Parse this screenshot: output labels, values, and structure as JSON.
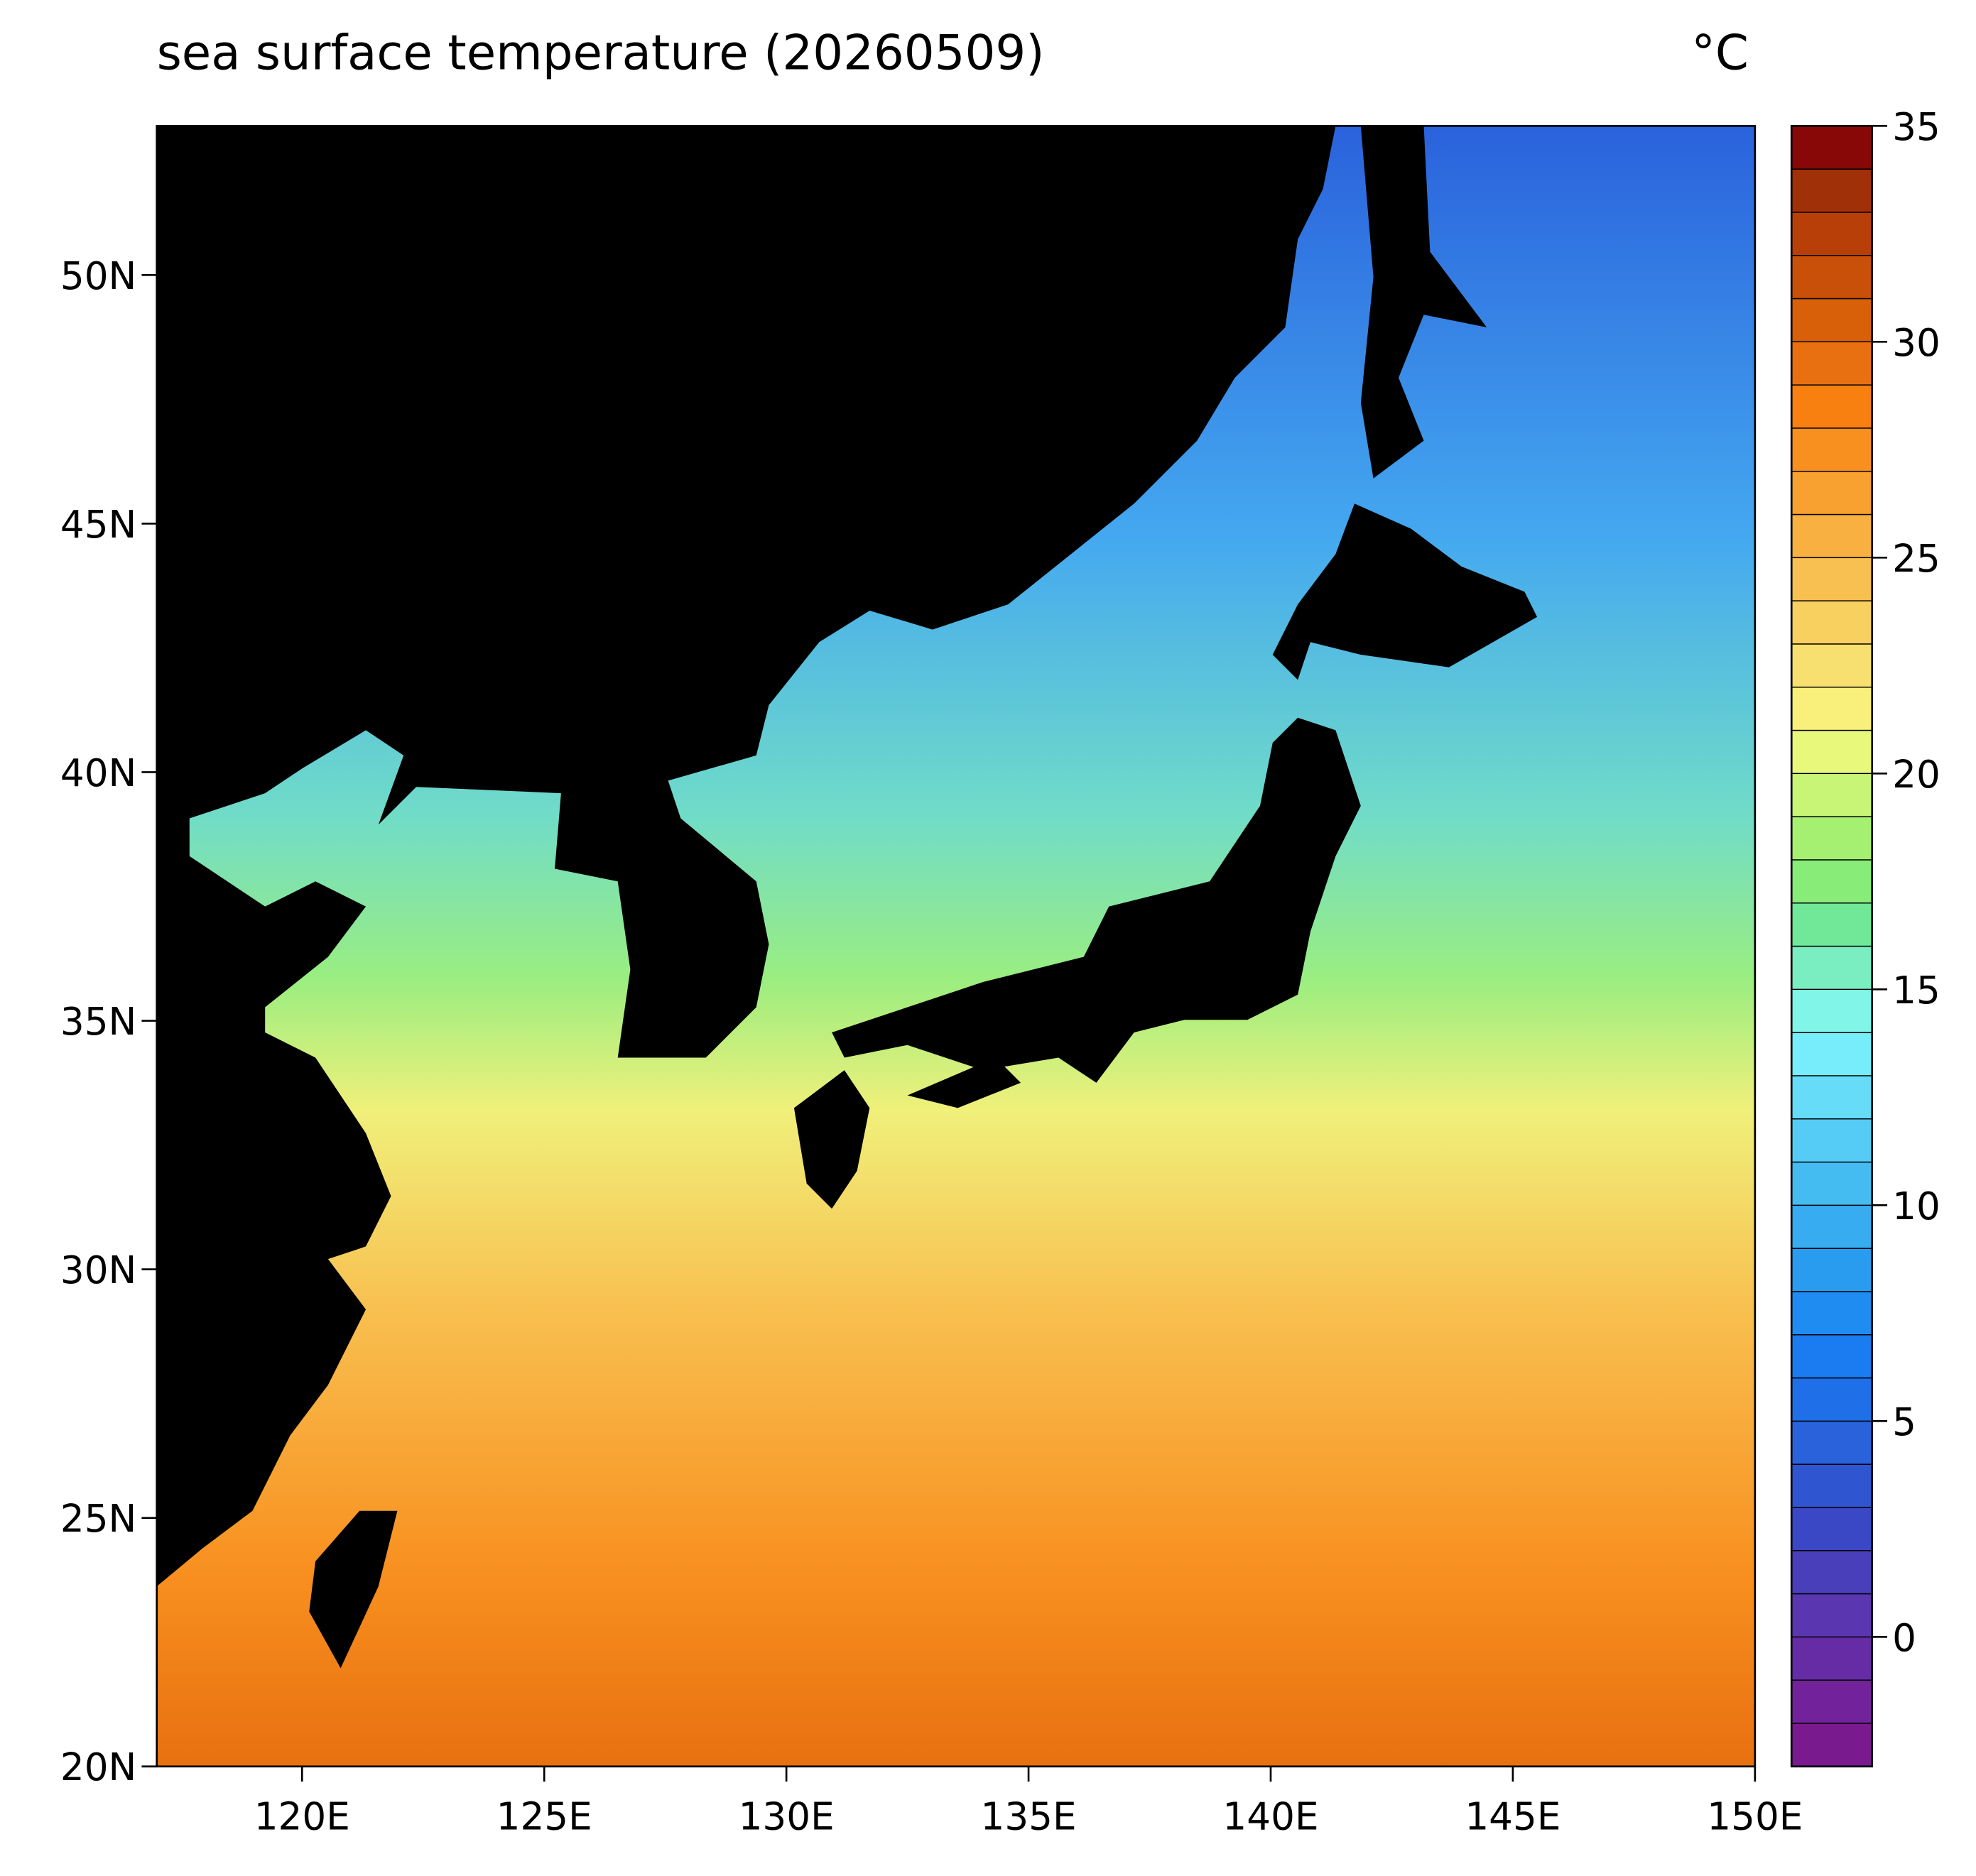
{
  "chart_data": {
    "type": "heatmap",
    "title": "sea surface temperature (20260509)",
    "unit": "°C",
    "xlim": [
      117,
      150
    ],
    "ylim": [
      20,
      53
    ],
    "xticks": [
      {
        "value": 120,
        "label": "120E"
      },
      {
        "value": 125,
        "label": "125E"
      },
      {
        "value": 130,
        "label": "130E"
      },
      {
        "value": 135,
        "label": "135E"
      },
      {
        "value": 140,
        "label": "140E"
      },
      {
        "value": 145,
        "label": "145E"
      },
      {
        "value": 150,
        "label": "150E"
      }
    ],
    "yticks": [
      {
        "value": 20,
        "label": "20N"
      },
      {
        "value": 25,
        "label": "25N"
      },
      {
        "value": 30,
        "label": "30N"
      },
      {
        "value": 35,
        "label": "35N"
      },
      {
        "value": 40,
        "label": "40N"
      },
      {
        "value": 45,
        "label": "45N"
      },
      {
        "value": 50,
        "label": "50N"
      }
    ],
    "colorbar": {
      "lim": [
        -3,
        35
      ],
      "ticks": [
        0,
        5,
        10,
        15,
        20,
        25,
        30,
        35
      ],
      "colors": [
        "#7a1a8f",
        "#72229a",
        "#662ca6",
        "#5a36b0",
        "#4a3fbb",
        "#3a48c6",
        "#2f55d0",
        "#2a62dc",
        "#1e6fe8",
        "#1a7cf0",
        "#1e8cf0",
        "#2a9cf0",
        "#38acf0",
        "#44bcf2",
        "#55ccf5",
        "#66dcf8",
        "#77ecfa",
        "#80f5e8",
        "#7aeec0",
        "#70e898",
        "#88ec78",
        "#a5f070",
        "#c8f575",
        "#e8f87a",
        "#f8f07a",
        "#f8e070",
        "#f8d060",
        "#f8c050",
        "#f8b040",
        "#f8a030",
        "#f89020",
        "#f88010",
        "#e87010",
        "#d86008",
        "#c85008",
        "#b84008",
        "#a03008",
        "#880808"
      ]
    }
  }
}
